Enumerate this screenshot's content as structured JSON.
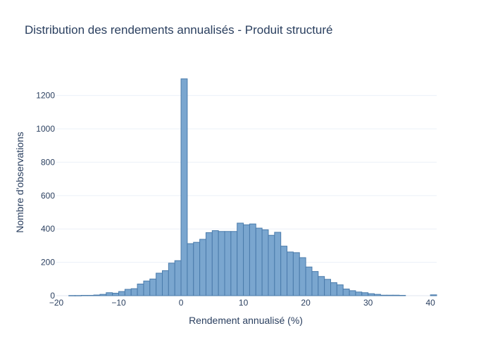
{
  "chart_data": {
    "type": "bar",
    "title": "Distribution des rendements annualisés - Produit structuré",
    "xlabel": "Rendement annualisé (%)",
    "ylabel": "Nombre d'observations",
    "xlim": [
      -20,
      41
    ],
    "ylim": [
      0,
      1380
    ],
    "x_ticks": [
      -20,
      -10,
      0,
      10,
      20,
      30,
      40
    ],
    "x_tick_labels": [
      "−20",
      "−10",
      "0",
      "10",
      "20",
      "30",
      "40"
    ],
    "y_ticks": [
      0,
      200,
      400,
      600,
      800,
      1000,
      1200
    ],
    "y_tick_labels": [
      "0",
      "200",
      "400",
      "600",
      "800",
      "1000",
      "1200"
    ],
    "bin_width": 1,
    "bins_start": [
      -20,
      -19,
      -18,
      -17,
      -16,
      -15,
      -14,
      -13,
      -12,
      -11,
      -10,
      -9,
      -8,
      -7,
      -6,
      -5,
      -4,
      -3,
      -2,
      -1,
      0,
      1,
      2,
      3,
      4,
      5,
      6,
      7,
      8,
      9,
      10,
      11,
      12,
      13,
      14,
      15,
      16,
      17,
      18,
      19,
      20,
      21,
      22,
      23,
      24,
      25,
      26,
      27,
      28,
      29,
      30,
      31,
      32,
      33,
      34,
      35,
      36,
      37,
      38,
      39,
      40
    ],
    "values": [
      0,
      0,
      1,
      1,
      2,
      2,
      4,
      8,
      18,
      15,
      25,
      38,
      42,
      70,
      88,
      100,
      135,
      150,
      195,
      210,
      1300,
      312,
      320,
      338,
      378,
      390,
      385,
      385,
      385,
      435,
      425,
      430,
      405,
      395,
      362,
      380,
      297,
      262,
      258,
      228,
      172,
      145,
      115,
      98,
      78,
      65,
      40,
      30,
      22,
      18,
      12,
      8,
      3,
      3,
      3,
      2,
      0,
      0,
      0,
      0,
      5
    ],
    "bar_color": "#7aa6cf",
    "bar_edge_color": "#4a7bab",
    "grid": true,
    "legend": "none"
  }
}
